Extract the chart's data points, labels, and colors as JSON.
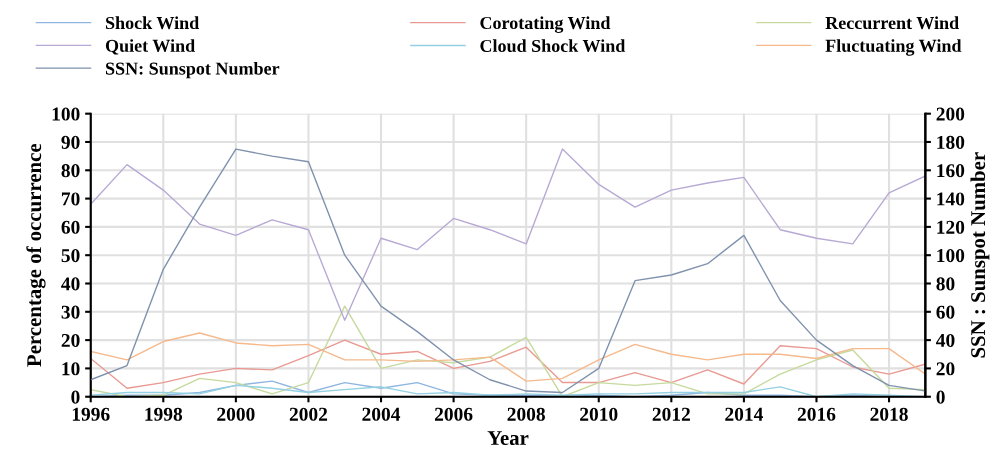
{
  "chart_data": {
    "type": "line",
    "xlabel": "Year",
    "ylabel": "Percentage of occurrence",
    "y2label": "SSN : Sunspot Number",
    "x": [
      1996,
      1997,
      1998,
      1999,
      2000,
      2001,
      2002,
      2003,
      2004,
      2005,
      2006,
      2007,
      2008,
      2009,
      2010,
      2011,
      2012,
      2013,
      2014,
      2015,
      2016,
      2017,
      2018,
      2019
    ],
    "xlim": [
      1996,
      2019
    ],
    "xticks": [
      1996,
      1998,
      2000,
      2002,
      2004,
      2006,
      2008,
      2010,
      2012,
      2014,
      2016,
      2018
    ],
    "ylim": [
      0,
      100
    ],
    "yticks": [
      0,
      10,
      20,
      30,
      40,
      50,
      60,
      70,
      80,
      90,
      100
    ],
    "y2lim": [
      0,
      200
    ],
    "y2ticks": [
      0,
      20,
      40,
      60,
      80,
      100,
      120,
      140,
      160,
      180,
      200
    ],
    "grid": true,
    "legend": "top",
    "line_style": "solid",
    "marker": "none",
    "series": [
      {
        "name": "Shock Wind",
        "color": "#8fb6e0",
        "values": [
          0,
          0.5,
          0.5,
          1.5,
          4,
          5.5,
          1.5,
          5,
          3,
          5,
          1,
          0.5,
          0.5,
          0,
          0.5,
          0,
          0.5,
          1.5,
          0.5,
          0.5,
          0,
          0.5,
          0,
          0
        ]
      },
      {
        "name": "Corotating Wind",
        "color": "#e89a92",
        "values": [
          13.5,
          3,
          5,
          8,
          10,
          9.5,
          14.5,
          20,
          15,
          16,
          10,
          12.5,
          17.5,
          5,
          5,
          8.5,
          5,
          9.5,
          4.5,
          18,
          17,
          10.5,
          8,
          11.5
        ]
      },
      {
        "name": "Reccurrent Wind",
        "color": "#c5da9c",
        "values": [
          2.5,
          0,
          0.5,
          6.5,
          5,
          1,
          5,
          32,
          10,
          13,
          12,
          14,
          21,
          0,
          5,
          4,
          5,
          1,
          1,
          8,
          13,
          16.5,
          3,
          2.5
        ]
      },
      {
        "name": "Quiet Wind",
        "color": "#b8a9d4",
        "values": [
          68,
          82,
          73,
          61,
          57,
          62.5,
          59,
          27,
          56,
          52,
          63,
          59,
          54,
          87.5,
          75,
          67,
          73,
          75.5,
          77.5,
          59,
          56,
          54,
          72,
          78
        ]
      },
      {
        "name": "Cloud Shock Wind",
        "color": "#93d0e2",
        "values": [
          0.5,
          1.5,
          1.5,
          1,
          4,
          3,
          1.5,
          2.5,
          3.5,
          1,
          1.5,
          0.5,
          1,
          0.5,
          1,
          1,
          1.5,
          1.5,
          1.5,
          3.5,
          0,
          1,
          0.5,
          0
        ]
      },
      {
        "name": "Fluctuating Wind",
        "color": "#f5b98c",
        "values": [
          16,
          13,
          19.5,
          22.5,
          19,
          18,
          18.5,
          13,
          13,
          12.5,
          13,
          14,
          5.5,
          6.5,
          13,
          18.5,
          15,
          13,
          15,
          15,
          13.5,
          17,
          17,
          8
        ]
      },
      {
        "name": "SSN: Sunspot Number",
        "color": "#7f92ad",
        "axis": "y2",
        "values": [
          12,
          22,
          90,
          134,
          175,
          170,
          166,
          100,
          64,
          46,
          26,
          12,
          4,
          3,
          20,
          82,
          86,
          94,
          114,
          68,
          40,
          22,
          8,
          4
        ]
      }
    ]
  }
}
